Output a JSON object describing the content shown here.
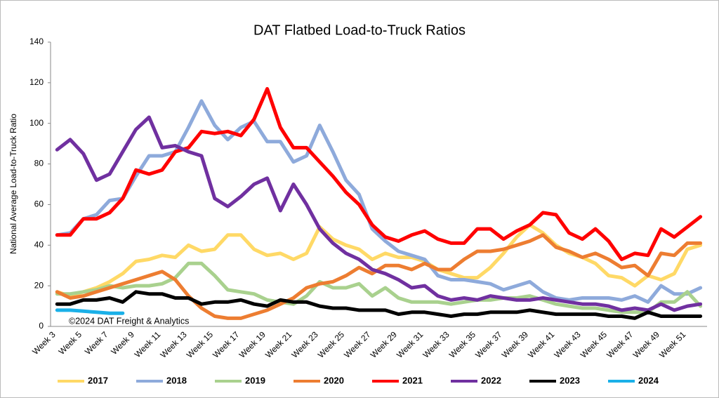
{
  "chart_data": {
    "type": "line",
    "title": "DAT Flatbed Load-to-Truck Ratios",
    "y_label": "National Average Load-to-Truck Ratio",
    "annotation": "©2024 DAT Freight & Analytics",
    "categories": [
      "Week 3",
      null,
      "Week 5",
      null,
      "Week 7",
      null,
      "Week 9",
      null,
      "Week 11",
      null,
      "Week 13",
      null,
      "Week 15",
      null,
      "Week 17",
      null,
      "Week 19",
      null,
      "Week 21",
      null,
      "Week 23",
      null,
      "Week 25",
      null,
      "Week 27",
      null,
      "Week 29",
      null,
      "Week 31",
      null,
      "Week 33",
      null,
      "Week 35",
      null,
      "Week 37",
      null,
      "Week 39",
      null,
      "Week 41",
      null,
      "Week 43",
      null,
      "Week 45",
      null,
      "Week 47",
      null,
      "Week 49",
      null,
      "Week 51",
      null
    ],
    "ylim": [
      0,
      140
    ],
    "yticks": [
      0,
      20,
      40,
      60,
      80,
      100,
      120,
      140
    ],
    "grid": false,
    "legend": "bottom",
    "series": [
      {
        "name": "2017",
        "color": "#ffd966",
        "values": [
          17,
          15,
          17,
          19,
          22,
          26,
          32,
          33,
          35,
          34,
          40,
          37,
          38,
          45,
          45,
          38,
          35,
          36,
          33,
          36,
          49,
          43,
          40,
          38,
          33,
          36,
          34,
          34,
          32,
          28,
          26,
          24,
          24,
          29,
          36,
          44,
          50,
          46,
          40,
          36,
          34,
          31,
          25,
          24,
          20,
          25,
          23,
          26,
          38,
          40
        ]
      },
      {
        "name": "2018",
        "color": "#8eaadb",
        "values": [
          45,
          46,
          53,
          55,
          62,
          63,
          74,
          84,
          84,
          86,
          98,
          111,
          99,
          92,
          98,
          101,
          91,
          91,
          81,
          84,
          99,
          86,
          72,
          65,
          48,
          42,
          37,
          35,
          33,
          25,
          23,
          23,
          22,
          21,
          18,
          20,
          22,
          17,
          14,
          13,
          14,
          14,
          14,
          13,
          15,
          12,
          20,
          16,
          16,
          19
        ]
      },
      {
        "name": "2019",
        "color": "#a9d18e",
        "values": [
          16,
          16,
          17,
          18,
          20,
          19,
          20,
          20,
          21,
          24,
          31,
          31,
          25,
          18,
          17,
          16,
          13,
          12,
          11,
          15,
          22,
          19,
          19,
          21,
          15,
          19,
          14,
          12,
          12,
          12,
          11,
          12,
          13,
          13,
          14,
          14,
          15,
          13,
          11,
          10,
          9,
          9,
          8,
          7,
          7,
          7,
          12,
          12,
          17,
          10
        ]
      },
      {
        "name": "2020",
        "color": "#ed7d31",
        "values": [
          17,
          14,
          15,
          17,
          19,
          21,
          23,
          25,
          27,
          23,
          15,
          9,
          5,
          4,
          4,
          6,
          8,
          11,
          14,
          19,
          21,
          22,
          25,
          29,
          26,
          30,
          30,
          28,
          31,
          28,
          28,
          33,
          37,
          37,
          38,
          40,
          42,
          45,
          39,
          37,
          34,
          36,
          33,
          29,
          30,
          25,
          36,
          35,
          41,
          41
        ]
      },
      {
        "name": "2021",
        "color": "#ff0000",
        "values": [
          45,
          45,
          53,
          53,
          56,
          63,
          77,
          75,
          77,
          86,
          88,
          96,
          95,
          96,
          94,
          102,
          117,
          98,
          88,
          88,
          81,
          74,
          66,
          60,
          50,
          44,
          42,
          45,
          47,
          43,
          41,
          41,
          48,
          48,
          43,
          47,
          50,
          56,
          55,
          46,
          43,
          48,
          42,
          33,
          36,
          35,
          48,
          44,
          49,
          54
        ]
      },
      {
        "name": "2022",
        "color": "#7030a0",
        "values": [
          87,
          92,
          85,
          72,
          75,
          86,
          97,
          103,
          88,
          89,
          86,
          84,
          63,
          59,
          64,
          70,
          73,
          57,
          70,
          60,
          48,
          41,
          36,
          33,
          28,
          26,
          23,
          19,
          20,
          15,
          13,
          14,
          13,
          15,
          14,
          13,
          13,
          14,
          13,
          12,
          11,
          11,
          10,
          8,
          9,
          8,
          11,
          8,
          10,
          11
        ]
      },
      {
        "name": "2023",
        "color": "#000000",
        "values": [
          11,
          11,
          13,
          13,
          14,
          12,
          17,
          16,
          16,
          14,
          14,
          11,
          12,
          12,
          13,
          11,
          10,
          13,
          12,
          12,
          10,
          9,
          9,
          8,
          8,
          8,
          6,
          7,
          7,
          6,
          5,
          6,
          6,
          7,
          7,
          7,
          8,
          7,
          6,
          6,
          6,
          6,
          5,
          5,
          4,
          7,
          5,
          5,
          5,
          5
        ]
      },
      {
        "name": "2024",
        "color": "#1ab0e8",
        "values": [
          8,
          8,
          7.5,
          7,
          6.5,
          6.5,
          null,
          null,
          null,
          null,
          null,
          null,
          null,
          null,
          null,
          null,
          null,
          null,
          null,
          null,
          null,
          null,
          null,
          null,
          null,
          null,
          null,
          null,
          null,
          null,
          null,
          null,
          null,
          null,
          null,
          null,
          null,
          null,
          null,
          null,
          null,
          null,
          null,
          null,
          null,
          null,
          null,
          null,
          null,
          null
        ]
      }
    ]
  }
}
